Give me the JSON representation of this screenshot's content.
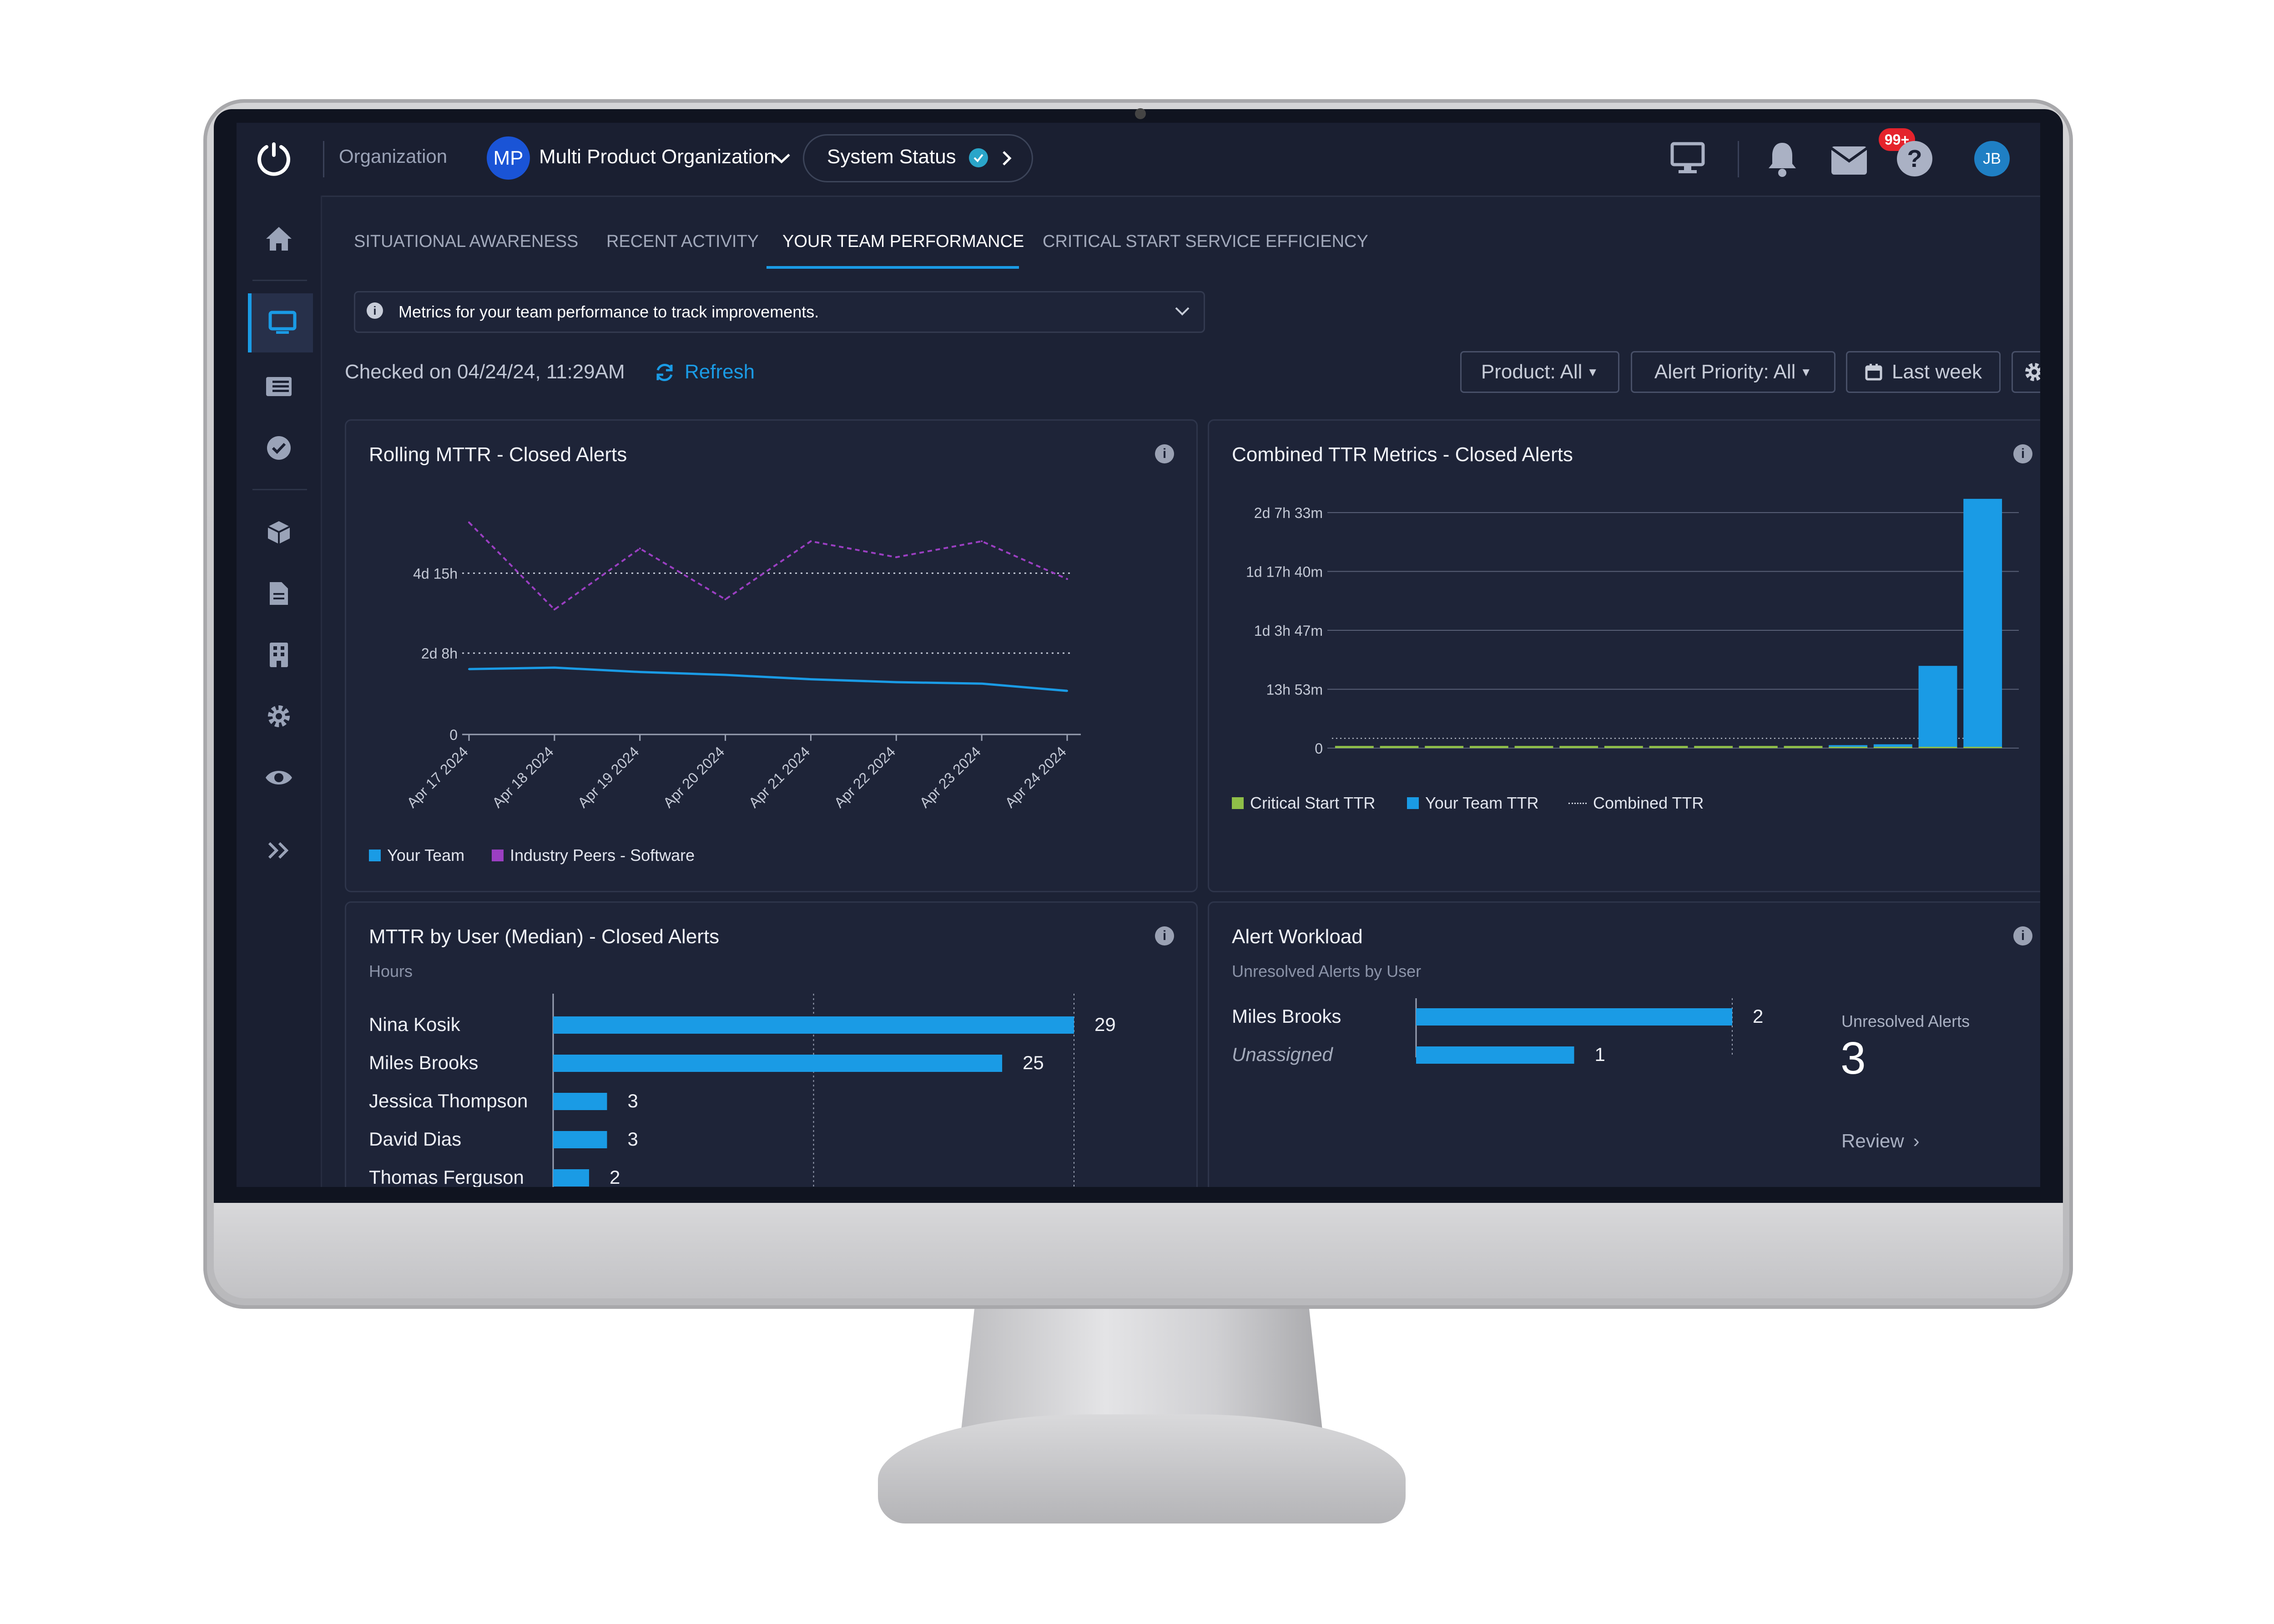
{
  "header": {
    "org_label": "Organization",
    "org_initials": "MP",
    "org_name": "Multi Product Organization",
    "system_status": "System Status",
    "notif_badge": "99+",
    "user_initials": "JB"
  },
  "icons": {
    "logo": "power-icon",
    "monitor": "monitor-icon",
    "bell": "bell-icon",
    "inbox": "inbox-icon",
    "help": "help-icon"
  },
  "tabs": [
    {
      "label": "SITUATIONAL AWARENESS"
    },
    {
      "label": "RECENT ACTIVITY"
    },
    {
      "label": "YOUR TEAM PERFORMANCE",
      "active": true
    },
    {
      "label": "CRITICAL START SERVICE EFFICIENCY"
    }
  ],
  "info": {
    "text": "Metrics for your team performance to track improvements."
  },
  "toolbar": {
    "checked": "Checked on 04/24/24, 11:29AM",
    "refresh": "Refresh",
    "product": "Product: All",
    "priority": "Alert Priority: All",
    "range": "Last week"
  },
  "colors": {
    "accent": "#1a9be5",
    "peers": "#9b3fc2",
    "critical": "#8fbf48",
    "bg": "#1c2235"
  },
  "panels": {
    "mttr": {
      "title": "Rolling MTTR - Closed Alerts"
    },
    "ttr": {
      "title": "Combined TTR Metrics - Closed Alerts"
    },
    "user": {
      "title": "MTTR by User (Median) - Closed Alerts",
      "subtitle": "Hours"
    },
    "workload": {
      "title": "Alert Workload",
      "subtitle": "Unresolved Alerts by User",
      "kpi_label": "Unresolved Alerts",
      "kpi_value": "3",
      "review": "Review"
    }
  },
  "chart_data": [
    {
      "type": "line",
      "title": "Rolling MTTR - Closed Alerts",
      "x": [
        "Apr 17 2024",
        "Apr 18 2024",
        "Apr 19 2024",
        "Apr 20 2024",
        "Apr 21 2024",
        "Apr 22 2024",
        "Apr 23 2024",
        "Apr 24 2024"
      ],
      "y_ticks": [
        "0",
        "2d 8h",
        "4d 15h"
      ],
      "y_tick_values": [
        0,
        56,
        111
      ],
      "ylim": [
        0,
        144
      ],
      "reference_lines": [
        56,
        111
      ],
      "series": [
        {
          "name": "Your Team",
          "color": "#1a9be5",
          "style": "solid",
          "values": [
            45,
            46,
            43,
            41,
            38,
            36,
            35,
            30
          ]
        },
        {
          "name": "Industry Peers - Software",
          "color": "#9b3fc2",
          "style": "dashed",
          "values": [
            146,
            86,
            128,
            93,
            133,
            122,
            133,
            107
          ]
        }
      ]
    },
    {
      "type": "bar",
      "title": "Combined TTR Metrics - Closed Alerts",
      "y_ticks": [
        "0",
        "13h 53m",
        "1d 3h 47m",
        "1d 17h 40m",
        "2d 7h 33m"
      ],
      "y_tick_values": [
        0,
        13.88,
        27.78,
        41.67,
        55.55
      ],
      "ylim": [
        0,
        59
      ],
      "series": [
        {
          "name": "Critical Start TTR",
          "color": "#8fbf48",
          "values": [
            0.3,
            0.3,
            0.3,
            0.3,
            0.3,
            0.3,
            0.3,
            0.3,
            0.3,
            0.3,
            0.3,
            0.1,
            0.1,
            0.1,
            0.1
          ]
        },
        {
          "name": "Your Team TTR",
          "color": "#1a9be5",
          "values": [
            0,
            0,
            0,
            0,
            0,
            0,
            0,
            0,
            0,
            0,
            0,
            0.6,
            0.8,
            19.3,
            58.7
          ]
        },
        {
          "name": "Combined TTR",
          "color": "#cfd3de",
          "style": "dotted"
        }
      ]
    },
    {
      "type": "bar",
      "orientation": "horizontal",
      "title": "MTTR by User (Median) - Closed Alerts",
      "categories": [
        "Nina Kosik",
        "Miles Brooks",
        "Jessica Thompson",
        "David Dias",
        "Thomas Ferguson"
      ],
      "values": [
        29,
        25,
        3,
        3,
        2
      ],
      "unit": "Hours"
    },
    {
      "type": "bar",
      "orientation": "horizontal",
      "title": "Alert Workload",
      "categories": [
        "Miles Brooks",
        "Unassigned"
      ],
      "values": [
        2,
        1
      ]
    }
  ]
}
